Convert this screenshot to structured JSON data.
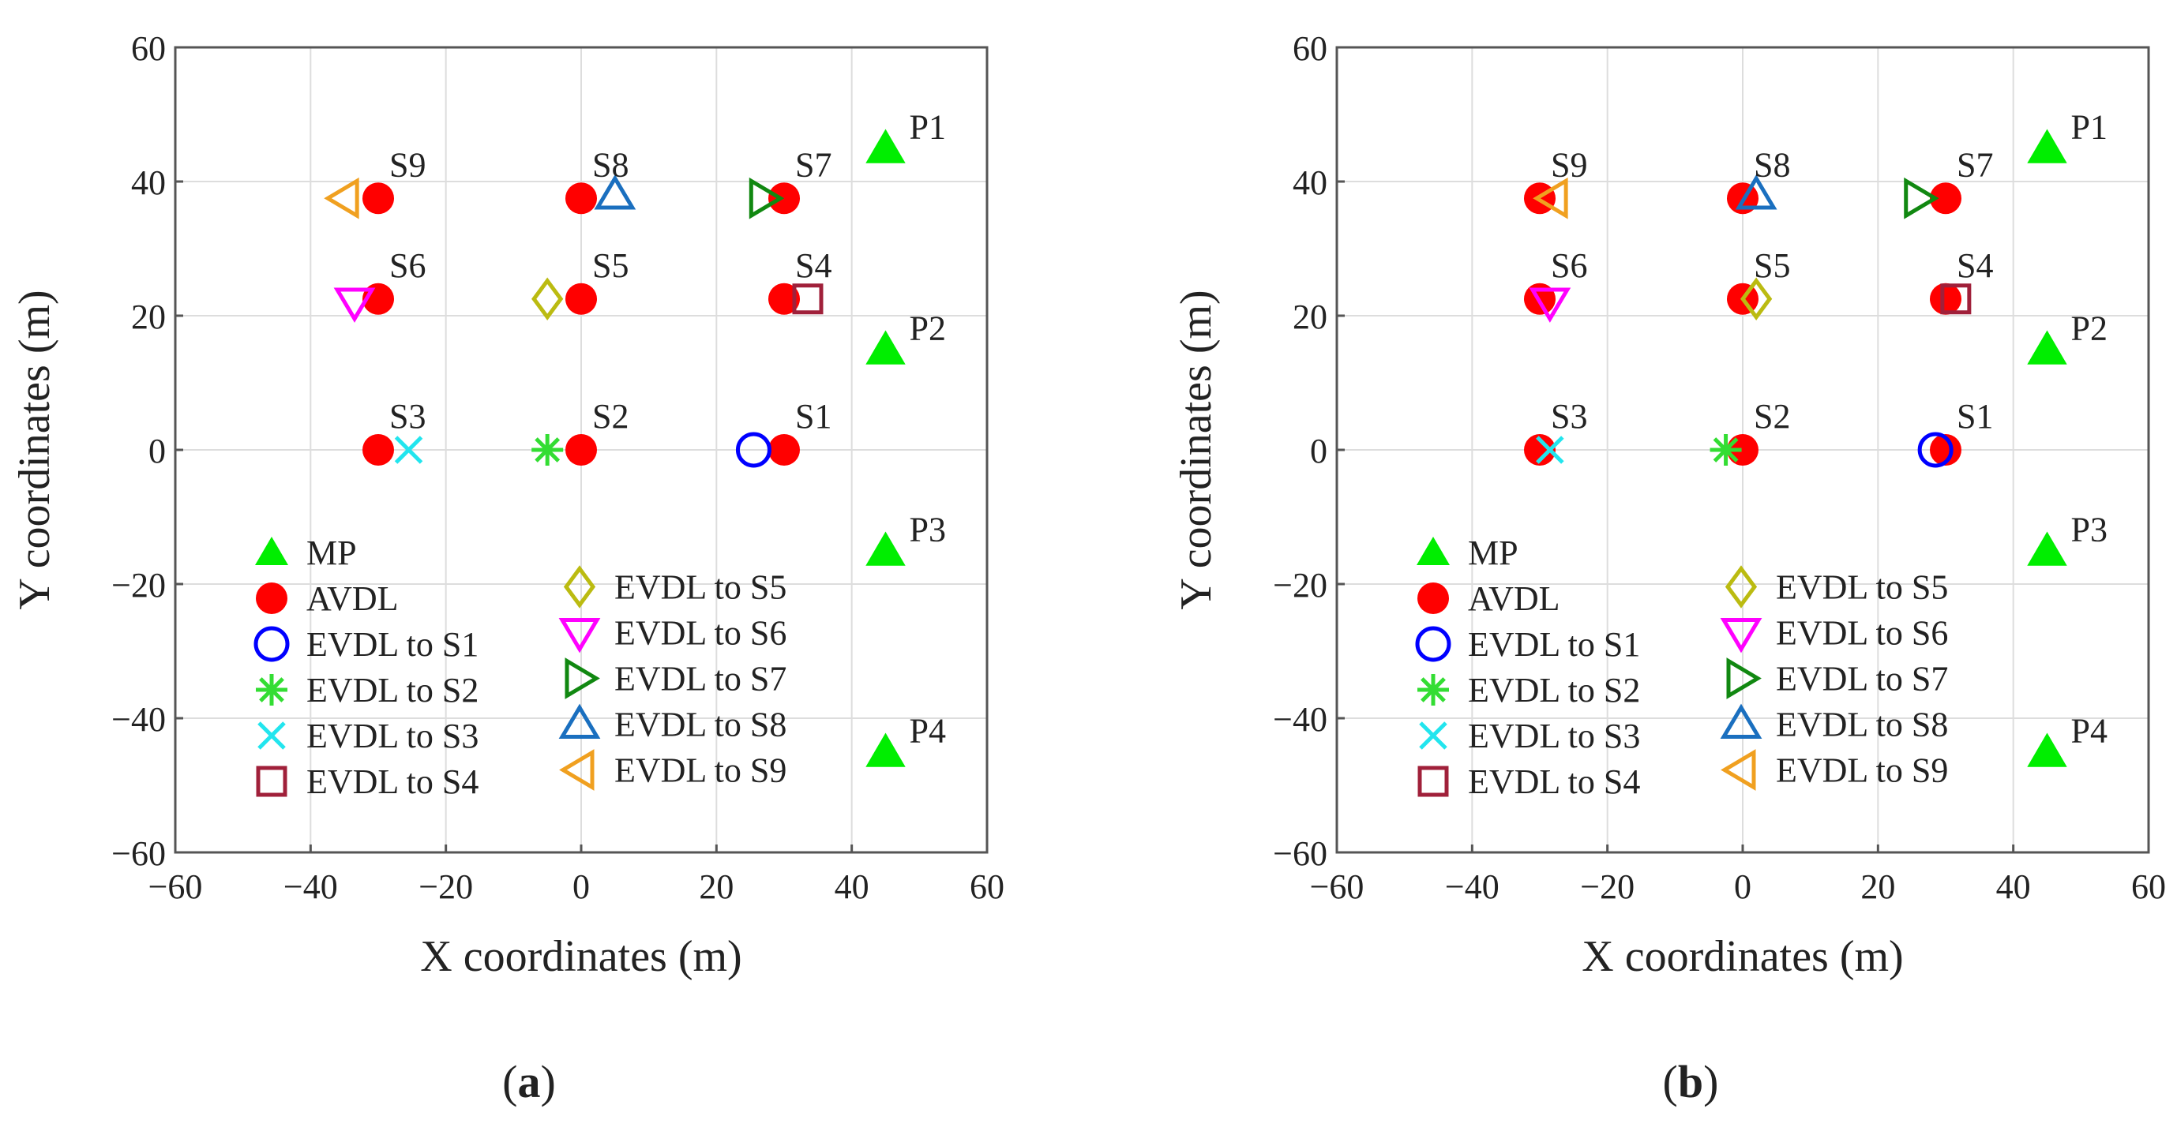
{
  "figure": {
    "panels": [
      "a",
      "b"
    ]
  },
  "colors": {
    "mp": "#00ee00",
    "avdl": "#ff0000",
    "s1": "#0000ff",
    "s2": "#33dd33",
    "s3": "#22e5ee",
    "s4": "#a0203a",
    "s5": "#bbbb11",
    "s6": "#ff00ff",
    "s7": "#118811",
    "s8": "#1a6fbf",
    "s9": "#f0a020",
    "grid": "#dddddd",
    "axis": "#555555"
  },
  "chart_data": [
    {
      "type": "scatter",
      "panel": "a",
      "caption": {
        "open": "(",
        "letter": "a",
        "close": ")"
      },
      "xlabel": "X coordinates (m)",
      "ylabel": "Y coordinates (m)",
      "xlim": [
        -60,
        60
      ],
      "ylim": [
        -60,
        60
      ],
      "xticks": [
        -60,
        -40,
        -20,
        0,
        20,
        40,
        60
      ],
      "yticks": [
        60,
        40,
        20,
        0,
        -20,
        -40,
        -60
      ],
      "grid": true,
      "legend": {
        "placement": "lower-left",
        "left_column": [
          "MP",
          "AVDL",
          "EVDL to S1",
          "EVDL to S2",
          "EVDL to S3",
          "EVDL to S4"
        ],
        "right_column": [
          "EVDL to S5",
          "EVDL to S6",
          "EVDL to S7",
          "EVDL to S8",
          "EVDL to S9"
        ]
      },
      "mp": [
        {
          "label": "P1",
          "x": 45,
          "y": 45
        },
        {
          "label": "P2",
          "x": 45,
          "y": 15
        },
        {
          "label": "P3",
          "x": 45,
          "y": -15
        },
        {
          "label": "P4",
          "x": 45,
          "y": -45
        }
      ],
      "avdl": [
        {
          "label": "S1",
          "x": 30,
          "y": 0
        },
        {
          "label": "S2",
          "x": 0,
          "y": 0
        },
        {
          "label": "S3",
          "x": -30,
          "y": 0
        },
        {
          "label": "S4",
          "x": 30,
          "y": 22.5
        },
        {
          "label": "S5",
          "x": 0,
          "y": 22.5
        },
        {
          "label": "S6",
          "x": -30,
          "y": 22.5
        },
        {
          "label": "S7",
          "x": 30,
          "y": 37.5
        },
        {
          "label": "S8",
          "x": 0,
          "y": 37.5
        },
        {
          "label": "S9",
          "x": -30,
          "y": 37.5
        }
      ],
      "evdl": [
        {
          "target": "S1",
          "x": 25.5,
          "y": 0
        },
        {
          "target": "S2",
          "x": -5,
          "y": 0
        },
        {
          "target": "S3",
          "x": -25.5,
          "y": 0
        },
        {
          "target": "S4",
          "x": 33.5,
          "y": 22.5
        },
        {
          "target": "S5",
          "x": -5,
          "y": 22.5
        },
        {
          "target": "S6",
          "x": -33.5,
          "y": 22
        },
        {
          "target": "S7",
          "x": 27,
          "y": 37.5
        },
        {
          "target": "S8",
          "x": 5,
          "y": 38
        },
        {
          "target": "S9",
          "x": -35,
          "y": 37.5
        }
      ]
    },
    {
      "type": "scatter",
      "panel": "b",
      "caption": {
        "open": "(",
        "letter": "b",
        "close": ")"
      },
      "xlabel": "X coordinates (m)",
      "ylabel": "Y coordinates (m)",
      "xlim": [
        -60,
        60
      ],
      "ylim": [
        -60,
        60
      ],
      "xticks": [
        -60,
        -40,
        -20,
        0,
        20,
        40,
        60
      ],
      "yticks": [
        60,
        40,
        20,
        0,
        -20,
        -40,
        -60
      ],
      "grid": true,
      "legend": {
        "placement": "lower-left",
        "left_column": [
          "MP",
          "AVDL",
          "EVDL to S1",
          "EVDL to S2",
          "EVDL to S3",
          "EVDL to S4"
        ],
        "right_column": [
          "EVDL to S5",
          "EVDL to S6",
          "EVDL to S7",
          "EVDL to S8",
          "EVDL to S9"
        ]
      },
      "mp": [
        {
          "label": "P1",
          "x": 45,
          "y": 45
        },
        {
          "label": "P2",
          "x": 45,
          "y": 15
        },
        {
          "label": "P3",
          "x": 45,
          "y": -15
        },
        {
          "label": "P4",
          "x": 45,
          "y": -45
        }
      ],
      "avdl": [
        {
          "label": "S1",
          "x": 30,
          "y": 0
        },
        {
          "label": "S2",
          "x": 0,
          "y": 0
        },
        {
          "label": "S3",
          "x": -30,
          "y": 0
        },
        {
          "label": "S4",
          "x": 30,
          "y": 22.5
        },
        {
          "label": "S5",
          "x": 0,
          "y": 22.5
        },
        {
          "label": "S6",
          "x": -30,
          "y": 22.5
        },
        {
          "label": "S7",
          "x": 30,
          "y": 37.5
        },
        {
          "label": "S8",
          "x": 0,
          "y": 37.5
        },
        {
          "label": "S9",
          "x": -30,
          "y": 37.5
        }
      ],
      "evdl": [
        {
          "target": "S1",
          "x": 28.5,
          "y": 0
        },
        {
          "target": "S2",
          "x": -2.5,
          "y": 0
        },
        {
          "target": "S3",
          "x": -28.5,
          "y": 0
        },
        {
          "target": "S4",
          "x": 31.5,
          "y": 22.5
        },
        {
          "target": "S5",
          "x": 2,
          "y": 22.5
        },
        {
          "target": "S6",
          "x": -28.5,
          "y": 22
        },
        {
          "target": "S7",
          "x": 26,
          "y": 37.5
        },
        {
          "target": "S8",
          "x": 2,
          "y": 38
        },
        {
          "target": "S9",
          "x": -28,
          "y": 37.5
        }
      ]
    }
  ]
}
